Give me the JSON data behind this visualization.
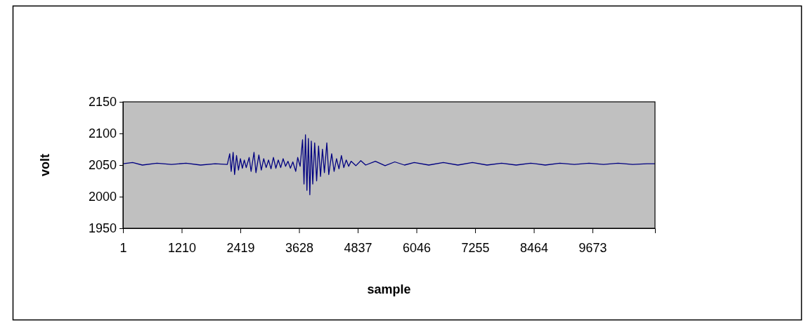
{
  "chart_data": {
    "type": "line",
    "xlabel": "sample",
    "ylabel": "volt",
    "xlim": [
      1,
      10960
    ],
    "xticks": [
      1,
      1210,
      2419,
      3628,
      4837,
      6046,
      7255,
      8464,
      9673
    ],
    "ylim": [
      1950,
      2150
    ],
    "yticks": [
      1950,
      2000,
      2050,
      2100,
      2150
    ],
    "grid": false,
    "marker": "none",
    "line_style": "solid",
    "series": [
      {
        "color": "#000080",
        "x": [
          1,
          200,
          400,
          700,
          1000,
          1300,
          1600,
          1900,
          2150,
          2200,
          2230,
          2270,
          2300,
          2340,
          2380,
          2420,
          2460,
          2500,
          2540,
          2600,
          2640,
          2700,
          2740,
          2800,
          2850,
          2900,
          2950,
          3000,
          3050,
          3100,
          3150,
          3200,
          3250,
          3300,
          3350,
          3400,
          3450,
          3500,
          3560,
          3600,
          3650,
          3700,
          3730,
          3760,
          3790,
          3820,
          3850,
          3880,
          3910,
          3950,
          3990,
          4030,
          4070,
          4110,
          4150,
          4200,
          4240,
          4300,
          4350,
          4400,
          4450,
          4500,
          4550,
          4600,
          4650,
          4700,
          4800,
          4900,
          5000,
          5200,
          5400,
          5600,
          5800,
          6000,
          6300,
          6600,
          6900,
          7200,
          7500,
          7800,
          8100,
          8400,
          8700,
          9000,
          9300,
          9600,
          9900,
          10200,
          10500,
          10800,
          10960
        ],
        "values": [
          2052,
          2054,
          2050,
          2053,
          2051,
          2053,
          2050,
          2052,
          2051,
          2068,
          2040,
          2070,
          2035,
          2065,
          2042,
          2060,
          2045,
          2058,
          2046,
          2062,
          2040,
          2070,
          2038,
          2066,
          2042,
          2060,
          2046,
          2058,
          2044,
          2062,
          2045,
          2058,
          2046,
          2060,
          2048,
          2056,
          2045,
          2055,
          2040,
          2062,
          2048,
          2090,
          2020,
          2098,
          2010,
          2092,
          2003,
          2088,
          2020,
          2085,
          2025,
          2080,
          2032,
          2075,
          2038,
          2085,
          2035,
          2068,
          2040,
          2060,
          2044,
          2065,
          2046,
          2058,
          2048,
          2056,
          2049,
          2057,
          2050,
          2056,
          2049,
          2055,
          2050,
          2054,
          2050,
          2054,
          2050,
          2054,
          2050,
          2053,
          2050,
          2053,
          2050,
          2053,
          2051,
          2053,
          2051,
          2053,
          2051,
          2052,
          2052
        ]
      }
    ]
  }
}
